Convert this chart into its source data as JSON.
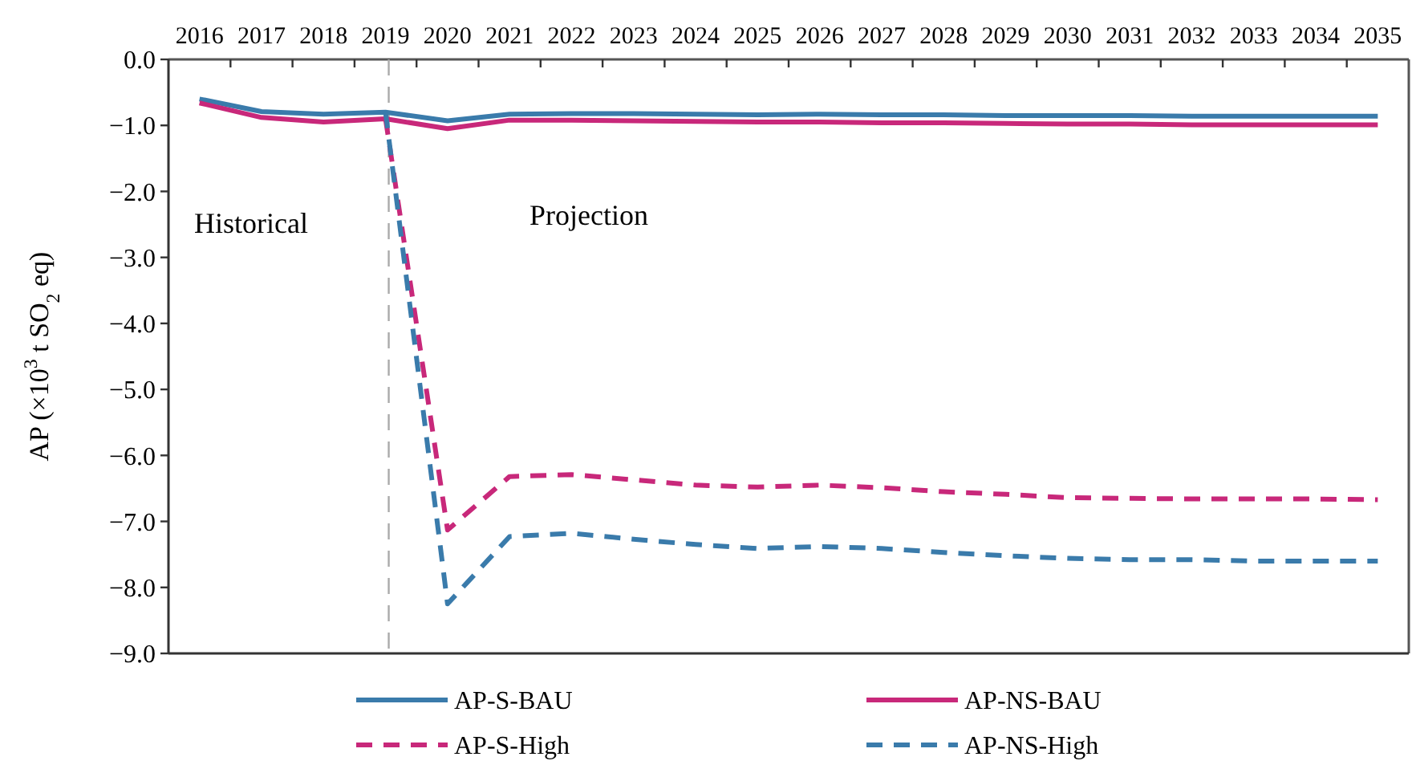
{
  "chart_data": {
    "type": "line",
    "ylabel": "AP (×10$^{3}$ t SO$_{2}$ eq)",
    "categories": [
      "2016",
      "2017",
      "2018",
      "2019",
      "2020",
      "2021",
      "2022",
      "2023",
      "2024",
      "2025",
      "2026",
      "2027",
      "2028",
      "2029",
      "2030",
      "2031",
      "2032",
      "2033",
      "2034",
      "2035"
    ],
    "ylim": [
      -9,
      0
    ],
    "yticks": [
      {
        "value": 0,
        "label": "0.0"
      },
      {
        "value": -1,
        "label": "−1.0"
      },
      {
        "value": -2,
        "label": "−2.0"
      },
      {
        "value": -3,
        "label": "−3.0"
      },
      {
        "value": -4,
        "label": "−4.0"
      },
      {
        "value": -5,
        "label": "−5.0"
      },
      {
        "value": -6,
        "label": "−6.0"
      },
      {
        "value": -7,
        "label": "−7.0"
      },
      {
        "value": -8,
        "label": "−8.0"
      },
      {
        "value": -9,
        "label": "−9.0"
      }
    ],
    "series": [
      {
        "name": "AP-S-BAU",
        "color": "#3a7bab",
        "line_style": "solid",
        "values": [
          -0.6,
          -0.79,
          -0.83,
          -0.8,
          -0.93,
          -0.83,
          -0.82,
          -0.82,
          -0.83,
          -0.84,
          -0.83,
          -0.84,
          -0.84,
          -0.85,
          -0.85,
          -0.85,
          -0.86,
          -0.86,
          -0.86,
          -0.86
        ]
      },
      {
        "name": "AP-NS-BAU",
        "color": "#c8287a",
        "line_style": "solid",
        "values": [
          -0.66,
          -0.88,
          -0.95,
          -0.9,
          -1.05,
          -0.92,
          -0.92,
          -0.93,
          -0.94,
          -0.95,
          -0.95,
          -0.96,
          -0.96,
          -0.97,
          -0.98,
          -0.98,
          -0.99,
          -0.99,
          -0.99,
          -0.99
        ]
      },
      {
        "name": "AP-S-High",
        "color": "#c8287a",
        "line_style": "dashed",
        "values": [
          null,
          null,
          null,
          -0.9,
          -7.13,
          -6.32,
          -6.29,
          -6.37,
          -6.45,
          -6.48,
          -6.45,
          -6.49,
          -6.55,
          -6.59,
          -6.64,
          -6.65,
          -6.66,
          -6.66,
          -6.66,
          -6.67
        ]
      },
      {
        "name": "AP-NS-High",
        "color": "#3a7bab",
        "line_style": "dashed",
        "values": [
          null,
          null,
          null,
          -0.8,
          -8.25,
          -7.23,
          -7.18,
          -7.27,
          -7.35,
          -7.41,
          -7.38,
          -7.41,
          -7.47,
          -7.52,
          -7.56,
          -7.58,
          -7.58,
          -7.6,
          -7.6,
          -7.6
        ]
      }
    ],
    "ref_lines": [
      {
        "axis": "x",
        "value": "2019",
        "color": "#aaaaaa",
        "line_style": "dashed"
      }
    ],
    "annotations": [
      "Historical",
      "Projection"
    ],
    "legend": "bottom",
    "grid": false
  }
}
